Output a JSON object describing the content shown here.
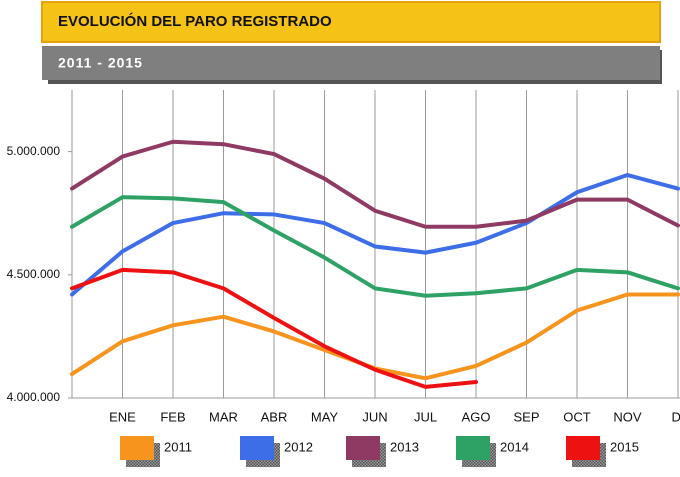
{
  "chart_data": {
    "type": "line",
    "title": "EVOLUCIÓN DEL PARO REGISTRADO",
    "subtitle": "2011 - 2015",
    "categories": [
      null,
      "ENE",
      "FEB",
      "MAR",
      "ABR",
      "MAY",
      "JUN",
      "JUL",
      "AGO",
      "SEP",
      "OCT",
      "NOV",
      "DI"
    ],
    "series": [
      {
        "name": "2011",
        "color": "#f7941d",
        "values": [
          4097000,
          4230000,
          4295000,
          4330000,
          4270000,
          4195000,
          4120000,
          4080000,
          4130000,
          4225000,
          4355000,
          4420000,
          4420000
        ]
      },
      {
        "name": "2012",
        "color": "#3d6ee8",
        "values": [
          4420000,
          4595000,
          4710000,
          4750000,
          4745000,
          4710000,
          4615000,
          4590000,
          4630000,
          4710000,
          4835000,
          4905000,
          4850000
        ]
      },
      {
        "name": "2013",
        "color": "#8e3a62",
        "values": [
          4850000,
          4980000,
          5040000,
          5030000,
          4990000,
          4890000,
          4760000,
          4695000,
          4695000,
          4720000,
          4805000,
          4805000,
          4700000
        ]
      },
      {
        "name": "2014",
        "color": "#2ea264",
        "values": [
          4695000,
          4815000,
          4810000,
          4795000,
          4680000,
          4570000,
          4445000,
          4415000,
          4425000,
          4445000,
          4520000,
          4510000,
          4445000
        ]
      },
      {
        "name": "2015",
        "color": "#ee1111",
        "values": [
          4445000,
          4520000,
          4510000,
          4445000,
          4325000,
          4210000,
          4115000,
          4045000,
          4065000,
          null,
          null,
          null,
          null
        ]
      }
    ],
    "ylim": [
      4000000,
      5250000
    ],
    "yticks": [
      {
        "value": 4000000,
        "label": "4.000.000"
      },
      {
        "value": 4500000,
        "label": "4.500.000"
      },
      {
        "value": 5000000,
        "label": "5.000.000"
      }
    ]
  }
}
